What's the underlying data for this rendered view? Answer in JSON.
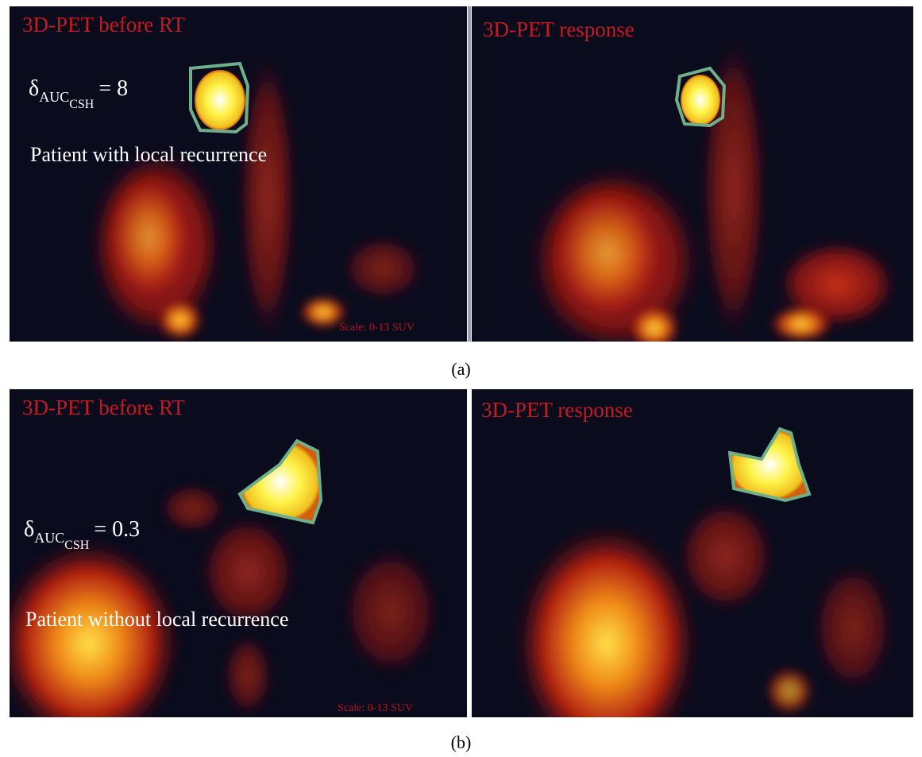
{
  "panels": [
    {
      "label": "(a)",
      "images": [
        {
          "title": "3D-PET before RT",
          "delta": {
            "symbol": "δ",
            "sub": "AUC",
            "subsub": "CSH",
            "value_text": "= 8"
          },
          "note": "Patient with local recurrence",
          "scale": "Scale: 0-13 SUV"
        },
        {
          "title": "3D-PET response"
        }
      ]
    },
    {
      "label": "(b)",
      "images": [
        {
          "title": "3D-PET before RT",
          "delta": {
            "symbol": "δ",
            "sub": "AUC",
            "subsub": "CSH",
            "value_text": "= 0.3"
          },
          "note": "Patient without local recurrence",
          "scale": "Scale: 0-13 SUV"
        },
        {
          "title": "3D-PET response"
        }
      ]
    }
  ]
}
